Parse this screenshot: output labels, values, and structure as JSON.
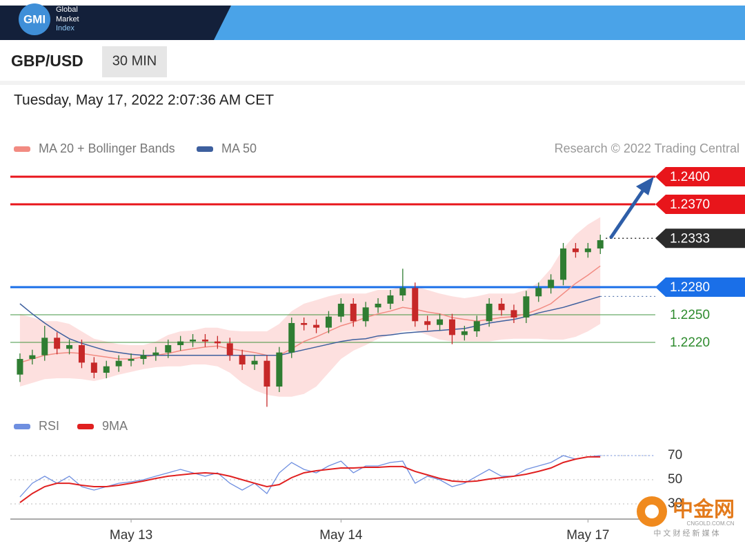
{
  "header": {
    "logo": "GMI",
    "brand": [
      "Global",
      "Market",
      "Index"
    ],
    "symbol": "GBP/USD",
    "timeframe": "30 MIN",
    "timestamp": "Tuesday, May 17, 2022 2:07:36 AM CET"
  },
  "watermark": {
    "name": "中金网",
    "site": "CNGOLD.COM.CN",
    "tagline": "中 文 财 经 新 媒 体"
  },
  "chart_data": [
    {
      "type": "candlestick",
      "credit": "Research © 2022 Trading Central",
      "categories": [
        null,
        null,
        null,
        null,
        null,
        null,
        null,
        null,
        null,
        "May 13",
        null,
        null,
        null,
        null,
        null,
        null,
        null,
        null,
        null,
        null,
        null,
        null,
        null,
        null,
        null,
        null,
        "May 14",
        null,
        null,
        null,
        null,
        null,
        null,
        null,
        null,
        null,
        null,
        null,
        null,
        null,
        null,
        null,
        null,
        null,
        null,
        null,
        "May 17",
        null
      ],
      "open": [
        1.2185,
        1.2202,
        1.2206,
        1.2225,
        1.2213,
        1.2217,
        1.2198,
        1.2187,
        1.2194,
        1.22,
        1.2202,
        1.2206,
        1.2209,
        1.2217,
        1.2221,
        1.2223,
        1.2221,
        1.2219,
        1.2206,
        1.2196,
        1.22,
        1.2172,
        1.2209,
        1.2241,
        1.2239,
        1.2236,
        1.2248,
        1.2262,
        1.2243,
        1.2258,
        1.2262,
        1.2271,
        1.2279,
        1.2243,
        1.2239,
        1.2245,
        1.2228,
        1.2232,
        1.2243,
        1.2262,
        1.2255,
        1.2247,
        1.227,
        1.2279,
        1.2288,
        1.2322,
        1.2318,
        1.2322
      ],
      "high": [
        1.2208,
        1.2212,
        1.2238,
        1.2231,
        1.2223,
        1.2223,
        1.2204,
        1.22,
        1.2206,
        1.2208,
        1.2212,
        1.2215,
        1.2223,
        1.2227,
        1.2229,
        1.2229,
        1.2227,
        1.2225,
        1.2212,
        1.2206,
        1.2206,
        1.2215,
        1.2247,
        1.2247,
        1.2245,
        1.2254,
        1.2268,
        1.2268,
        1.2264,
        1.2268,
        1.2277,
        1.23,
        1.2285,
        1.2249,
        1.2251,
        1.2251,
        1.2238,
        1.2249,
        1.2268,
        1.2268,
        1.2261,
        1.2276,
        1.2285,
        1.2294,
        1.2328,
        1.2328,
        1.2328,
        1.2337
      ],
      "low": [
        1.2177,
        1.2196,
        1.22,
        1.2207,
        1.2207,
        1.2192,
        1.2181,
        1.2181,
        1.2188,
        1.2194,
        1.2196,
        1.22,
        1.2203,
        1.2211,
        1.2215,
        1.2215,
        1.2213,
        1.22,
        1.219,
        1.219,
        1.215,
        1.2166,
        1.2203,
        1.2233,
        1.223,
        1.223,
        1.2242,
        1.2237,
        1.2237,
        1.2252,
        1.2256,
        1.2265,
        1.2237,
        1.2233,
        1.2233,
        1.2218,
        1.2222,
        1.2226,
        1.2237,
        1.2249,
        1.2241,
        1.2241,
        1.2264,
        1.2273,
        1.2282,
        1.2312,
        1.2312,
        1.2316
      ],
      "close": [
        1.2202,
        1.2206,
        1.2225,
        1.2213,
        1.2217,
        1.2198,
        1.2187,
        1.2194,
        1.22,
        1.2202,
        1.2206,
        1.2209,
        1.2217,
        1.2221,
        1.2223,
        1.2221,
        1.2219,
        1.2206,
        1.2196,
        1.22,
        1.2172,
        1.2209,
        1.2241,
        1.2239,
        1.2236,
        1.2248,
        1.2262,
        1.2243,
        1.2258,
        1.2262,
        1.2271,
        1.2279,
        1.2243,
        1.2239,
        1.2245,
        1.2228,
        1.2232,
        1.2243,
        1.2262,
        1.2255,
        1.2247,
        1.227,
        1.2279,
        1.2288,
        1.2322,
        1.2318,
        1.2322,
        1.2331
      ],
      "up_color": "#2f7d32",
      "down_color": "#c62828",
      "series": [
        {
          "name": "MA 20 + Bollinger Bands",
          "color": "#f28b82",
          "band_color": "#fde0df",
          "values": [
            1.2198,
            1.2202,
            1.2206,
            1.2208,
            1.2209,
            1.2208,
            1.2206,
            1.2204,
            1.2202,
            1.2202,
            1.2204,
            1.2206,
            1.2208,
            1.2211,
            1.2213,
            1.2215,
            1.2216,
            1.2213,
            1.2211,
            1.2209,
            1.2206,
            1.2206,
            1.2213,
            1.2221,
            1.2226,
            1.2232,
            1.2238,
            1.2242,
            1.2247,
            1.2251,
            1.2254,
            1.2258,
            1.2256,
            1.2253,
            1.2251,
            1.2247,
            1.2245,
            1.2243,
            1.2245,
            1.2247,
            1.2248,
            1.2251,
            1.2256,
            1.2262,
            1.2273,
            1.2284,
            1.2293,
            1.2303
          ],
          "upper": [
            1.2251,
            1.2247,
            1.2243,
            1.2243,
            1.224,
            1.2232,
            1.2224,
            1.2221,
            1.2218,
            1.2217,
            1.2217,
            1.2221,
            1.2228,
            1.2232,
            1.2233,
            1.2236,
            1.2236,
            1.2233,
            1.2232,
            1.2232,
            1.2232,
            1.224,
            1.2254,
            1.2262,
            1.2266,
            1.227,
            1.2273,
            1.2273,
            1.2273,
            1.2277,
            1.2277,
            1.2281,
            1.2281,
            1.2277,
            1.2273,
            1.227,
            1.2268,
            1.227,
            1.2273,
            1.2273,
            1.2273,
            1.2277,
            1.2285,
            1.23,
            1.2322,
            1.2337,
            1.2348,
            1.2356
          ],
          "lower": [
            1.2172,
            1.2176,
            1.218,
            1.2181,
            1.2181,
            1.218,
            1.2178,
            1.2181,
            1.2185,
            1.2188,
            1.2191,
            1.2193,
            1.2194,
            1.2194,
            1.2196,
            1.2196,
            1.2194,
            1.2187,
            1.2176,
            1.2168,
            1.2163,
            1.2161,
            1.2161,
            1.2164,
            1.2172,
            1.2187,
            1.2202,
            1.2211,
            1.2217,
            1.2224,
            1.2228,
            1.2232,
            1.2233,
            1.2228,
            1.2223,
            1.2221,
            1.2221,
            1.2221,
            1.2221,
            1.2223,
            1.2224,
            1.2224,
            1.2224,
            1.2223,
            1.2223,
            1.2226,
            1.2232,
            1.224
          ]
        },
        {
          "name": "MA 50",
          "color": "#3d5f9e",
          "values": [
            1.2262,
            1.2251,
            1.2241,
            1.2232,
            1.2224,
            1.2219,
            1.2215,
            1.2211,
            1.2209,
            1.2207,
            1.2206,
            1.2206,
            1.2206,
            1.2206,
            1.2206,
            1.2206,
            1.2206,
            1.2206,
            1.2206,
            1.2206,
            1.2206,
            1.2206,
            1.2209,
            1.2212,
            1.2215,
            1.2218,
            1.2221,
            1.2223,
            1.2224,
            1.2227,
            1.2228,
            1.223,
            1.2231,
            1.2232,
            1.2233,
            1.2234,
            1.2235,
            1.2238,
            1.2241,
            1.2243,
            1.2245,
            1.2248,
            1.2252,
            1.2255,
            1.2258,
            1.2262,
            1.2266,
            1.227
          ]
        }
      ],
      "levels": [
        {
          "value": 1.24,
          "label": "1.2400",
          "color": "#e8151b",
          "tag": true
        },
        {
          "value": 1.237,
          "label": "1.2370",
          "color": "#e8151b",
          "tag": true
        },
        {
          "value": 1.2333,
          "color": "#2b2b2b",
          "tag": true,
          "dotted": true
        },
        {
          "value": 1.228,
          "label": "1.2280",
          "color": "#1a6fe8",
          "tag": true
        },
        {
          "value": 1.225,
          "label": "1.2250",
          "color": "#2e8b2e",
          "tag": false
        },
        {
          "value": 1.222,
          "label": "1.2220",
          "color": "#2e8b2e",
          "tag": false
        }
      ],
      "ylim": [
        1.2145,
        1.242
      ]
    },
    {
      "type": "line",
      "series": [
        {
          "name": "RSI",
          "color": "#6f8fe0",
          "values": [
            35.7,
            47.1,
            52.9,
            47.1,
            52.9,
            44.3,
            41.4,
            44.3,
            47.1,
            48.3,
            50,
            52.9,
            55.7,
            58.6,
            55.7,
            52.9,
            55.7,
            47.1,
            41.4,
            47.1,
            38.6,
            55.7,
            64.3,
            58.6,
            55.7,
            61.4,
            65.4,
            55.7,
            61.4,
            61.4,
            64.3,
            65.4,
            47.1,
            52.9,
            50,
            44.3,
            47.1,
            52.9,
            58.6,
            52.9,
            52.9,
            58.6,
            61.4,
            64.3,
            70,
            67.1,
            68.9,
            70
          ]
        },
        {
          "name": "9MA",
          "color": "#e02020",
          "values": [
            31.1,
            38.6,
            44.3,
            47.1,
            47.1,
            45.4,
            44.3,
            44.3,
            45.4,
            47.1,
            48.9,
            51.1,
            52.9,
            54,
            55.1,
            55.7,
            55.1,
            52.9,
            50,
            47.1,
            44.3,
            46,
            51.7,
            55.7,
            57.4,
            58.6,
            59.7,
            59.7,
            60.3,
            60.3,
            60.9,
            60.9,
            56.9,
            54,
            51.1,
            48.9,
            48.3,
            48.9,
            50.6,
            51.7,
            52.9,
            54.6,
            56.9,
            59.7,
            64.3,
            67.1,
            68.9,
            68.9
          ]
        }
      ],
      "ylim": [
        22,
        78
      ],
      "yticks": [
        70,
        50,
        30
      ],
      "grid": true
    }
  ]
}
